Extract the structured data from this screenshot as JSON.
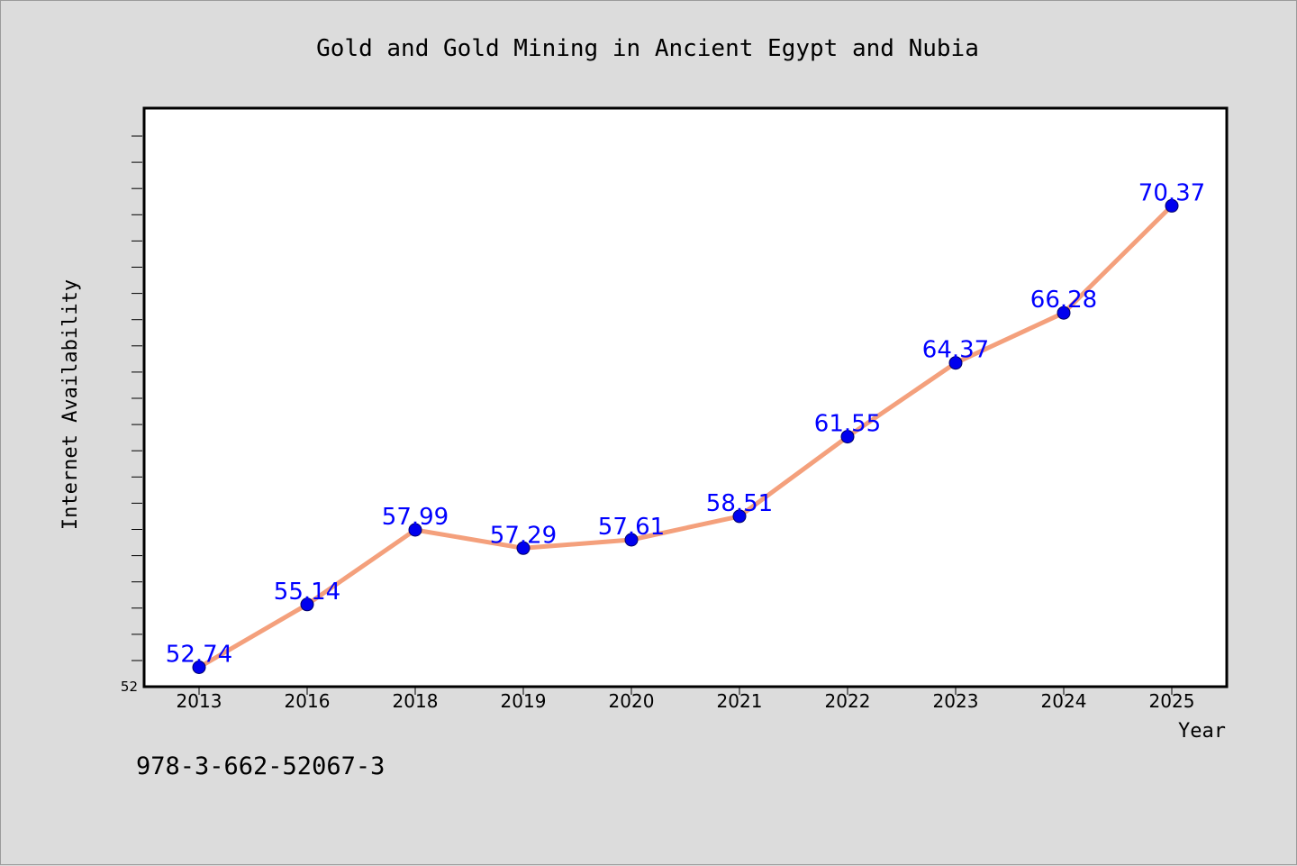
{
  "chart_data": {
    "type": "line",
    "title": "Gold and Gold Mining in Ancient Egypt and Nubia",
    "xlabel": "Year",
    "ylabel": "Internet Availability",
    "categories": [
      "2013",
      "2016",
      "2018",
      "2019",
      "2020",
      "2021",
      "2022",
      "2023",
      "2024",
      "2025"
    ],
    "series": [
      {
        "values": [
          52.74,
          55.14,
          57.99,
          57.29,
          57.61,
          58.51,
          61.55,
          64.37,
          66.28,
          70.37
        ],
        "labels": [
          "52.74",
          "55.14",
          "57.99",
          "57.29",
          "57.61",
          "58.51",
          "61.55",
          "64.37",
          "66.28",
          "70.37"
        ]
      }
    ],
    "ylim": [
      52,
      74.1
    ],
    "y_tick_label": "52",
    "grid": false,
    "legend": "none"
  },
  "colors": {
    "line": "#f4a07c",
    "marker": "#0000ee",
    "data_label": "#0000ff",
    "background": "#dcdcdc",
    "plot_area": "#ffffff"
  },
  "caption": "978-3-662-52067-3"
}
